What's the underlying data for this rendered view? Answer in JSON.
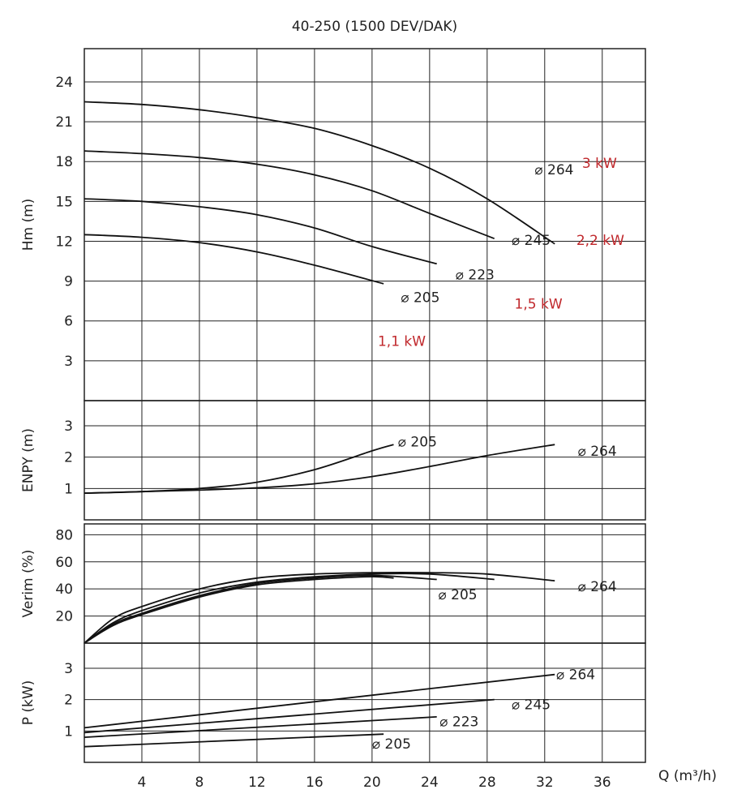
{
  "chart_data": {
    "type": "line",
    "title": "40-250 (1500 DEV/DAK)",
    "xlabel": "Q (m³/h)",
    "xlim": [
      0,
      39
    ],
    "xticks": [
      4,
      8,
      12,
      16,
      20,
      24,
      28,
      32,
      36
    ],
    "diameter_symbol": "⌀",
    "panels": [
      {
        "id": "hm",
        "ylabel": "Hm (m)",
        "ylim": [
          0,
          26.5
        ],
        "yticks": [
          3,
          6,
          9,
          12,
          15,
          18,
          21,
          24
        ],
        "series": [
          {
            "name": "264",
            "x": [
              0,
              4,
              8,
              12,
              16,
              20,
              24,
              28,
              32.7
            ],
            "y": [
              22.5,
              22.3,
              21.9,
              21.3,
              20.5,
              19.2,
              17.5,
              15.2,
              11.8
            ]
          },
          {
            "name": "245",
            "x": [
              0,
              4,
              8,
              12,
              16,
              20,
              24,
              28.5
            ],
            "y": [
              18.8,
              18.6,
              18.3,
              17.8,
              17.0,
              15.8,
              14.1,
              12.2
            ]
          },
          {
            "name": "223",
            "x": [
              0,
              4,
              8,
              12,
              16,
              20,
              24.5
            ],
            "y": [
              15.2,
              15.0,
              14.6,
              14.0,
              13.0,
              11.6,
              10.3
            ]
          },
          {
            "name": "205",
            "x": [
              0,
              4,
              8,
              12,
              16,
              20.8
            ],
            "y": [
              12.5,
              12.3,
              11.9,
              11.2,
              10.2,
              8.8
            ]
          }
        ],
        "curve_labels": [
          {
            "text": "264",
            "x": 31.3,
            "y": 17.4
          },
          {
            "text": "245",
            "x": 29.7,
            "y": 12.1
          },
          {
            "text": "223",
            "x": 25.8,
            "y": 9.5
          },
          {
            "text": "205",
            "x": 22.0,
            "y": 7.8
          }
        ],
        "power_labels": [
          {
            "text": "3 kW",
            "x": 34.6,
            "y": 17.9
          },
          {
            "text": "2,2 kW",
            "x": 34.2,
            "y": 12.1
          },
          {
            "text": "1,5 kW",
            "x": 29.9,
            "y": 7.3
          },
          {
            "text": "1,1 kW",
            "x": 20.4,
            "y": 4.5
          }
        ]
      },
      {
        "id": "npsh",
        "ylabel": "ENPY (m)",
        "ylim": [
          0,
          3.8
        ],
        "yticks": [
          1,
          2,
          3
        ],
        "series": [
          {
            "name": "205",
            "x": [
              0,
              4,
              8,
              12,
              16,
              20,
              21.5
            ],
            "y": [
              0.85,
              0.9,
              1.0,
              1.2,
              1.6,
              2.2,
              2.4
            ]
          },
          {
            "name": "264",
            "x": [
              0,
              4,
              8,
              12,
              16,
              20,
              24,
              28,
              32.7
            ],
            "y": [
              0.85,
              0.9,
              0.95,
              1.02,
              1.15,
              1.38,
              1.7,
              2.05,
              2.4
            ]
          }
        ],
        "curve_labels": [
          {
            "text": "205",
            "x": 21.8,
            "y": 2.5
          },
          {
            "text": "264",
            "x": 34.3,
            "y": 2.2
          }
        ]
      },
      {
        "id": "eff",
        "ylabel": "Verim (%)",
        "ylim": [
          0,
          88
        ],
        "yticks": [
          20,
          40,
          60,
          80
        ],
        "series": [
          {
            "name": "264",
            "x": [
              0,
              2,
              4,
              8,
              12,
              16,
              20,
              24,
              28,
              32.7
            ],
            "y": [
              0,
              18,
              27,
              40,
              48,
              51,
              52,
              52,
              51,
              46
            ]
          },
          {
            "name": "245",
            "x": [
              0,
              2,
              4,
              8,
              12,
              16,
              20,
              24,
              28.5
            ],
            "y": [
              0,
              15,
              24,
              37,
              45,
              49,
              51,
              51,
              47
            ]
          },
          {
            "name": "223",
            "x": [
              0,
              2,
              4,
              8,
              12,
              16,
              20,
              24.5
            ],
            "y": [
              0,
              14,
              22,
              35,
              44,
              48,
              50,
              47
            ]
          },
          {
            "name": "205",
            "x": [
              0,
              2,
              4,
              8,
              12,
              16,
              20,
              21.5
            ],
            "y": [
              0,
              13,
              21,
              34,
              43,
              47,
              49,
              48
            ]
          }
        ],
        "curve_labels": [
          {
            "text": "205",
            "x": 24.6,
            "y": 36
          },
          {
            "text": "264",
            "x": 34.3,
            "y": 42
          }
        ]
      },
      {
        "id": "power",
        "ylabel": "P (kW)",
        "ylim": [
          0,
          3.8
        ],
        "yticks": [
          1,
          2,
          3
        ],
        "series": [
          {
            "name": "264",
            "x": [
              0,
              32.7
            ],
            "y": [
              1.1,
              2.8
            ]
          },
          {
            "name": "245",
            "x": [
              0,
              28.5
            ],
            "y": [
              0.95,
              2.0
            ]
          },
          {
            "name": "223",
            "x": [
              0,
              24.5
            ],
            "y": [
              0.8,
              1.45
            ]
          },
          {
            "name": "205",
            "x": [
              0,
              20.8
            ],
            "y": [
              0.5,
              0.9
            ]
          }
        ],
        "curve_labels": [
          {
            "text": "264",
            "x": 32.8,
            "y": 2.8
          },
          {
            "text": "245",
            "x": 29.7,
            "y": 1.85
          },
          {
            "text": "223",
            "x": 24.7,
            "y": 1.3
          },
          {
            "text": "205",
            "x": 20.0,
            "y": 0.6
          }
        ]
      }
    ]
  }
}
